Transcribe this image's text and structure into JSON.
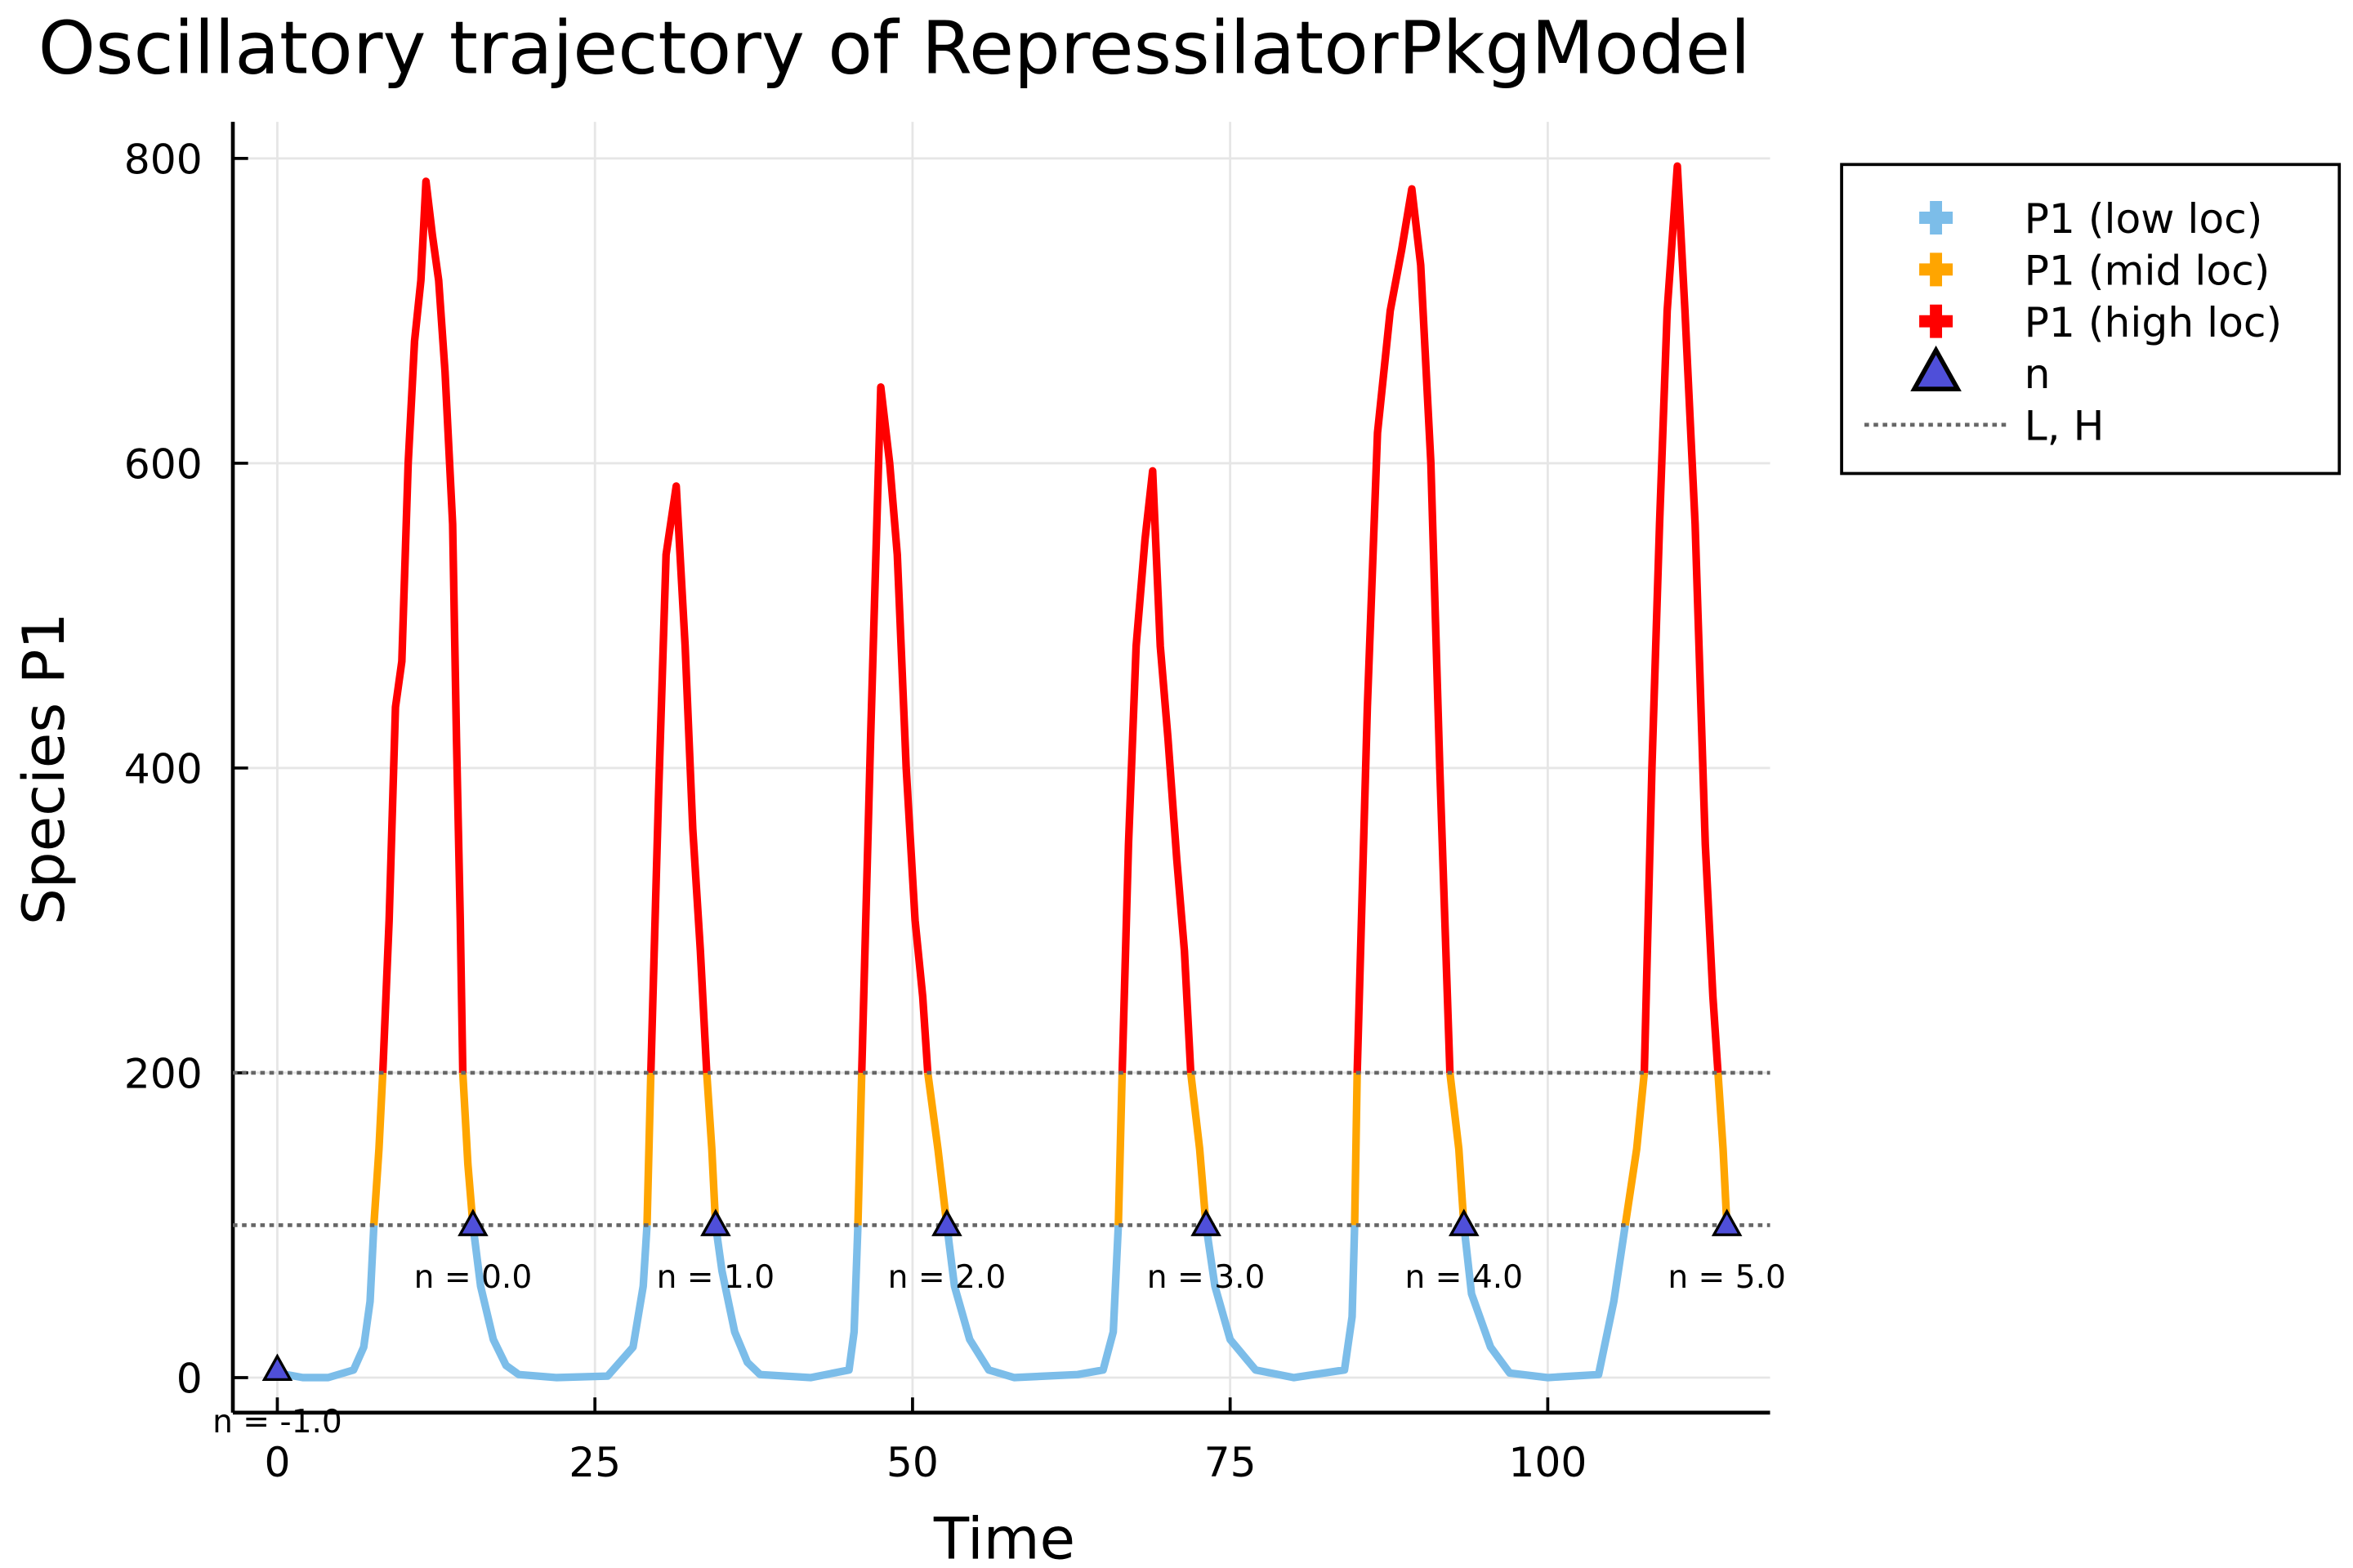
{
  "chart_data": {
    "type": "line",
    "title": "Oscillatory trajectory of RepressilatorPkgModel",
    "x_label": "Time",
    "y_label": "Species P1",
    "x": [
      0,
      2,
      4,
      6,
      6.8,
      7.3,
      7.6,
      8,
      8.3,
      8.8,
      9.3,
      9.8,
      10.3,
      10.8,
      11.3,
      11.7,
      12.2,
      12.7,
      13.2,
      13.8,
      14.1,
      14.4,
      14.6,
      15,
      15.4,
      16,
      17,
      18,
      19,
      22,
      26,
      28,
      28.8,
      29.1,
      29.4,
      30,
      30.6,
      31.4,
      32.1,
      32.7,
      33.3,
      33.8,
      34.2,
      34.5,
      35,
      36,
      37,
      38,
      42,
      45,
      45.4,
      45.7,
      46,
      46.7,
      47.5,
      48.2,
      48.8,
      49.5,
      50.2,
      50.8,
      51.2,
      52,
      52.7,
      53.3,
      54.5,
      56,
      58,
      63,
      65,
      65.8,
      66.2,
      66.5,
      67,
      67.6,
      68.3,
      68.9,
      69.5,
      70.1,
      70.8,
      71.4,
      71.9,
      72.6,
      73.1,
      73.8,
      75,
      77,
      80,
      84,
      84.6,
      84.8,
      85,
      85.8,
      86.6,
      87.6,
      88.5,
      89.3,
      90,
      90.8,
      91.5,
      92.1,
      92.3,
      93,
      93.4,
      94,
      95.5,
      97,
      100,
      104,
      105.2,
      106.1,
      107,
      107.6,
      108.2,
      108.8,
      109.4,
      110.2,
      110.8,
      111.6,
      112.4,
      113,
      113.4,
      113.8,
      114.1
    ],
    "series": [
      {
        "name": "P1 (low loc)",
        "color": "#7cbde9",
        "values": [
          3,
          0,
          0,
          5,
          20,
          50,
          100,
          null,
          null,
          null,
          null,
          null,
          null,
          null,
          null,
          null,
          null,
          null,
          null,
          null,
          null,
          null,
          null,
          null,
          100,
          60,
          25,
          8,
          2,
          0,
          1,
          20,
          60,
          100,
          null,
          null,
          null,
          null,
          null,
          null,
          null,
          null,
          null,
          100,
          70,
          30,
          10,
          2,
          0,
          5,
          30,
          100,
          null,
          null,
          null,
          null,
          null,
          null,
          null,
          null,
          null,
          null,
          100,
          60,
          25,
          5,
          0,
          2,
          5,
          30,
          100,
          null,
          null,
          null,
          null,
          null,
          null,
          null,
          null,
          null,
          null,
          null,
          100,
          60,
          25,
          5,
          0,
          5,
          40,
          100,
          null,
          null,
          null,
          null,
          null,
          null,
          null,
          null,
          null,
          null,
          null,
          null,
          100,
          55,
          20,
          3,
          0,
          2,
          50,
          100,
          null,
          null,
          null,
          null,
          null,
          null,
          null,
          null,
          null,
          null,
          null,
          null,
          100
        ]
      },
      {
        "name": "P1 (mid loc)",
        "color": "#ffa500",
        "values": [
          null,
          null,
          null,
          null,
          null,
          null,
          100,
          150,
          200,
          null,
          null,
          null,
          null,
          null,
          null,
          null,
          null,
          null,
          null,
          null,
          null,
          null,
          200,
          140,
          100,
          null,
          null,
          null,
          null,
          null,
          null,
          null,
          null,
          100,
          200,
          null,
          null,
          null,
          null,
          null,
          null,
          200,
          150,
          100,
          null,
          null,
          null,
          null,
          null,
          null,
          null,
          100,
          200,
          null,
          null,
          null,
          null,
          null,
          null,
          null,
          200,
          150,
          100,
          null,
          null,
          null,
          null,
          null,
          null,
          null,
          100,
          200,
          null,
          null,
          null,
          null,
          null,
          null,
          null,
          null,
          200,
          150,
          100,
          null,
          null,
          null,
          null,
          null,
          null,
          100,
          200,
          null,
          null,
          null,
          null,
          null,
          null,
          null,
          null,
          null,
          200,
          150,
          100,
          null,
          null,
          null,
          null,
          null,
          null,
          100,
          150,
          200,
          null,
          null,
          null,
          null,
          null,
          null,
          null,
          null,
          200,
          150,
          100
        ]
      },
      {
        "name": "P1 (high loc)",
        "color": "#ff0000",
        "values": [
          null,
          null,
          null,
          null,
          null,
          null,
          null,
          null,
          200,
          300,
          440,
          470,
          600,
          680,
          720,
          785,
          750,
          720,
          660,
          560,
          420,
          300,
          200,
          null,
          null,
          null,
          null,
          null,
          null,
          null,
          null,
          null,
          null,
          null,
          200,
          380,
          540,
          585,
          480,
          360,
          280,
          200,
          null,
          null,
          null,
          null,
          null,
          null,
          null,
          null,
          null,
          null,
          200,
          420,
          650,
          600,
          540,
          400,
          300,
          250,
          200,
          null,
          null,
          null,
          null,
          null,
          null,
          null,
          null,
          null,
          null,
          200,
          350,
          480,
          550,
          595,
          480,
          420,
          340,
          280,
          200,
          null,
          null,
          null,
          null,
          null,
          null,
          null,
          null,
          null,
          200,
          440,
          620,
          700,
          740,
          780,
          730,
          600,
          400,
          250,
          200,
          null,
          null,
          null,
          null,
          null,
          null,
          null,
          null,
          null,
          null,
          200,
          400,
          560,
          700,
          795,
          700,
          560,
          350,
          250,
          200,
          null,
          null
        ]
      }
    ],
    "markers": {
      "name": "n",
      "color": "#4f4fd9",
      "x": [
        0,
        15.4,
        34.5,
        52.7,
        73.1,
        93.4,
        114.1
      ],
      "y": [
        5,
        100,
        100,
        100,
        100,
        100,
        100
      ],
      "labels": [
        "n = -1.0",
        "n = 0.0",
        "n = 1.0",
        "n = 2.0",
        "n = 3.0",
        "n = 4.0",
        "n = 5.0"
      ]
    },
    "hlines": {
      "name": "L, H",
      "color": "#666666",
      "values": [
        100,
        200
      ]
    },
    "xlim": [
      -3.5,
      117.5
    ],
    "ylim": [
      -23,
      824
    ],
    "xticks": [
      0,
      25,
      50,
      75,
      100
    ],
    "yticks": [
      0,
      200,
      400,
      600,
      800
    ],
    "grid": true
  }
}
